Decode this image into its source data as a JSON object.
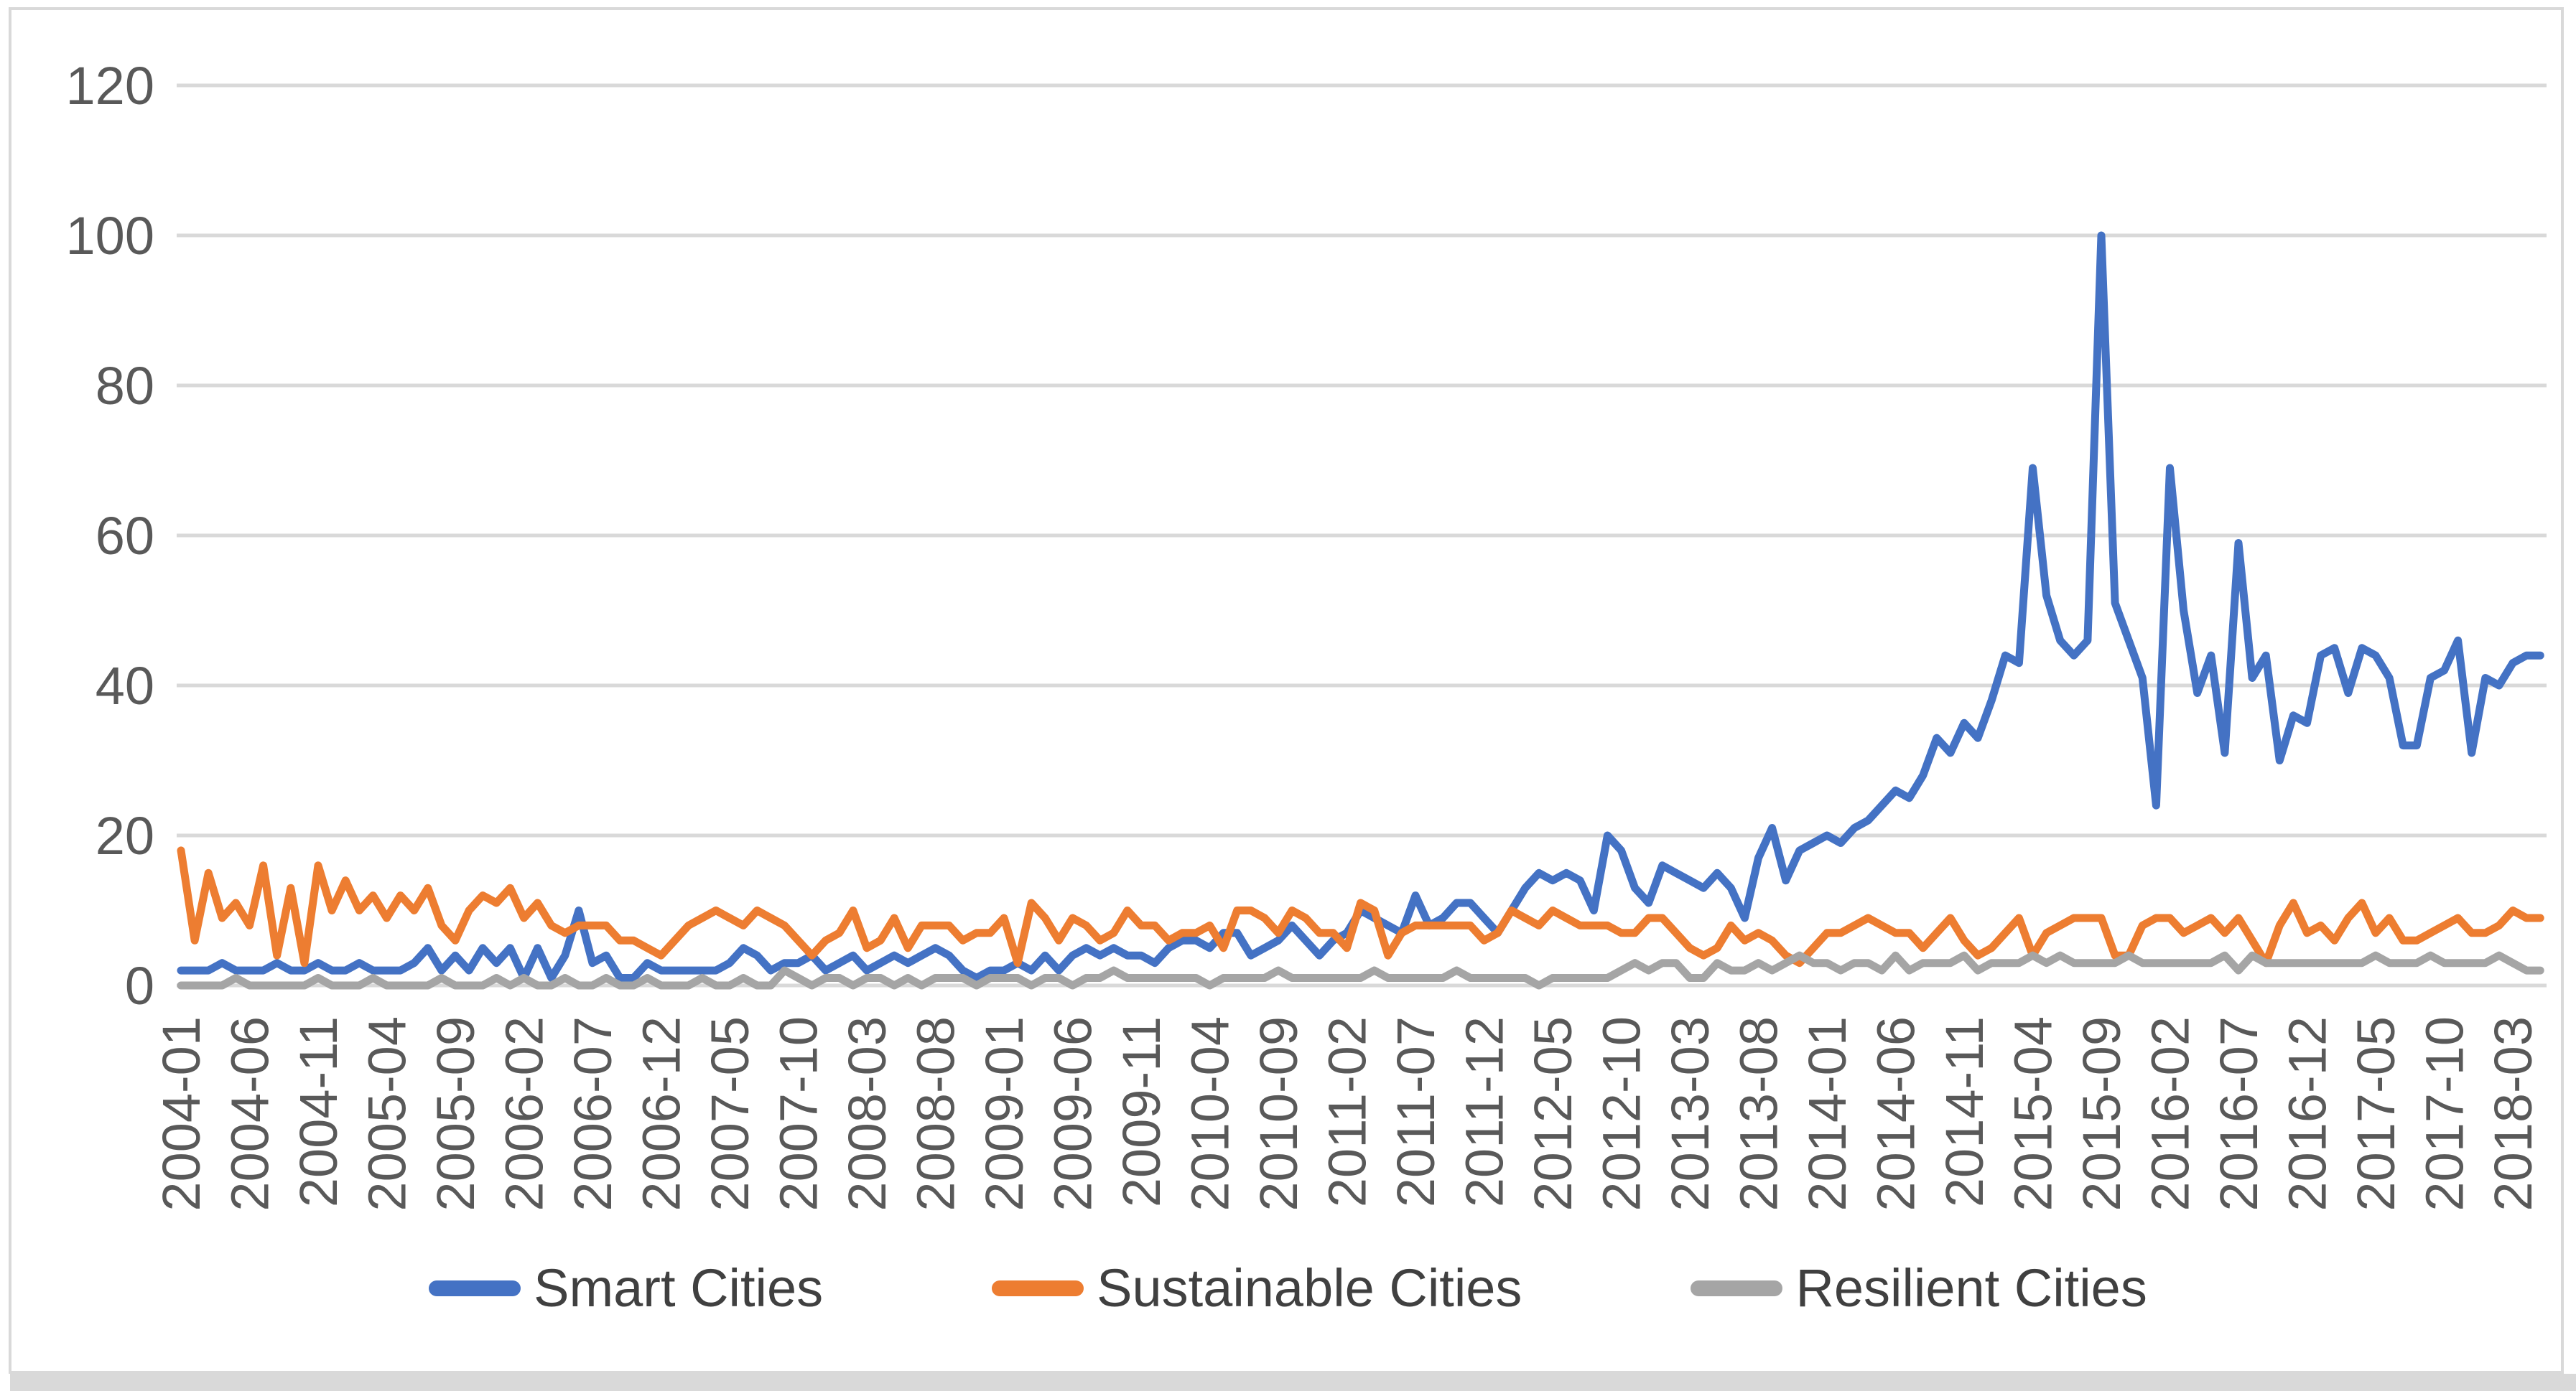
{
  "chart_data": {
    "type": "line",
    "title": "",
    "xlabel": "",
    "ylabel": "",
    "ylim": [
      0,
      120
    ],
    "grid": "horizontal",
    "legend_position": "bottom-center",
    "y_ticks": [
      0,
      20,
      40,
      60,
      80,
      100,
      120
    ],
    "x_start_month": "2004-01",
    "x_end_month": "2018-05",
    "x_tick_step_months": 5,
    "x_tick_labels": [
      "2004-01",
      "2004-06",
      "2004-11",
      "2005-04",
      "2005-09",
      "2006-02",
      "2006-07",
      "2006-12",
      "2007-05",
      "2007-10",
      "2008-03",
      "2008-08",
      "2009-01",
      "2009-06",
      "2009-11",
      "2010-04",
      "2010-09",
      "2011-02",
      "2011-07",
      "2011-12",
      "2012-05",
      "2012-10",
      "2013-03",
      "2013-08",
      "2014-01",
      "2014-06",
      "2014-11",
      "2015-04",
      "2015-09",
      "2016-02",
      "2016-07",
      "2016-12",
      "2017-05",
      "2017-10",
      "2018-03"
    ],
    "series": [
      {
        "name": "Smart Cities",
        "color": "#4472C4",
        "values": [
          2,
          2,
          2,
          3,
          2,
          2,
          2,
          3,
          2,
          2,
          3,
          2,
          2,
          3,
          2,
          2,
          2,
          3,
          5,
          2,
          4,
          2,
          5,
          3,
          5,
          1,
          5,
          1,
          4,
          10,
          3,
          4,
          1,
          1,
          3,
          2,
          2,
          2,
          2,
          2,
          3,
          5,
          4,
          2,
          3,
          3,
          4,
          2,
          3,
          4,
          2,
          3,
          4,
          3,
          4,
          5,
          4,
          2,
          1,
          2,
          2,
          3,
          2,
          4,
          2,
          4,
          5,
          4,
          5,
          4,
          4,
          3,
          5,
          6,
          6,
          5,
          7,
          7,
          4,
          5,
          6,
          8,
          6,
          4,
          6,
          7,
          10,
          9,
          8,
          7,
          12,
          8,
          9,
          11,
          11,
          9,
          7,
          10,
          13,
          15,
          14,
          15,
          14,
          10,
          20,
          18,
          13,
          11,
          16,
          15,
          14,
          13,
          15,
          13,
          9,
          17,
          21,
          14,
          18,
          19,
          20,
          19,
          21,
          22,
          24,
          26,
          25,
          28,
          33,
          31,
          35,
          33,
          38,
          44,
          43,
          69,
          52,
          46,
          44,
          46,
          100,
          51,
          46,
          41,
          24,
          69,
          50,
          39,
          44,
          31,
          59,
          41,
          44,
          30,
          36,
          35,
          44,
          45,
          39,
          45,
          44,
          41,
          32,
          32,
          41,
          42,
          46,
          31,
          41,
          40,
          43,
          44,
          44
        ]
      },
      {
        "name": "Sustainable Cities",
        "color": "#ED7D31",
        "values": [
          18,
          6,
          15,
          9,
          11,
          8,
          16,
          4,
          13,
          3,
          16,
          10,
          14,
          10,
          12,
          9,
          12,
          10,
          13,
          8,
          6,
          10,
          12,
          11,
          13,
          9,
          11,
          8,
          7,
          8,
          8,
          8,
          6,
          6,
          5,
          4,
          6,
          8,
          9,
          10,
          9,
          8,
          10,
          9,
          8,
          6,
          4,
          6,
          7,
          10,
          5,
          6,
          9,
          5,
          8,
          8,
          8,
          6,
          7,
          7,
          9,
          3,
          11,
          9,
          6,
          9,
          8,
          6,
          7,
          10,
          8,
          8,
          6,
          7,
          7,
          8,
          5,
          10,
          10,
          9,
          7,
          10,
          9,
          7,
          7,
          5,
          11,
          10,
          4,
          7,
          8,
          8,
          8,
          8,
          8,
          6,
          7,
          10,
          9,
          8,
          10,
          9,
          8,
          8,
          8,
          7,
          7,
          9,
          9,
          7,
          5,
          4,
          5,
          8,
          6,
          7,
          6,
          4,
          3,
          5,
          7,
          7,
          8,
          9,
          8,
          7,
          7,
          5,
          7,
          9,
          6,
          4,
          5,
          7,
          9,
          4,
          7,
          8,
          9,
          9,
          9,
          4,
          4,
          8,
          9,
          9,
          7,
          8,
          9,
          7,
          9,
          6,
          3,
          8,
          11,
          7,
          8,
          6,
          9,
          11,
          7,
          9,
          6,
          6,
          7,
          8,
          9,
          7,
          7,
          8,
          10,
          9,
          9
        ]
      },
      {
        "name": "Resilient Cities",
        "color": "#A5A5A5",
        "values": [
          0,
          0,
          0,
          0,
          1,
          0,
          0,
          0,
          0,
          0,
          1,
          0,
          0,
          0,
          1,
          0,
          0,
          0,
          0,
          1,
          0,
          0,
          0,
          1,
          0,
          1,
          0,
          0,
          1,
          0,
          0,
          1,
          0,
          0,
          1,
          0,
          0,
          0,
          1,
          0,
          0,
          1,
          0,
          0,
          2,
          1,
          0,
          1,
          1,
          0,
          1,
          1,
          0,
          1,
          0,
          1,
          1,
          1,
          0,
          1,
          1,
          1,
          0,
          1,
          1,
          0,
          1,
          1,
          2,
          1,
          1,
          1,
          1,
          1,
          1,
          0,
          1,
          1,
          1,
          1,
          2,
          1,
          1,
          1,
          1,
          1,
          1,
          2,
          1,
          1,
          1,
          1,
          1,
          2,
          1,
          1,
          1,
          1,
          1,
          0,
          1,
          1,
          1,
          1,
          1,
          2,
          3,
          2,
          3,
          3,
          1,
          1,
          3,
          2,
          2,
          3,
          2,
          3,
          4,
          3,
          3,
          2,
          3,
          3,
          2,
          4,
          2,
          3,
          3,
          3,
          4,
          2,
          3,
          3,
          3,
          4,
          3,
          4,
          3,
          3,
          3,
          3,
          4,
          3,
          3,
          3,
          3,
          3,
          3,
          4,
          2,
          4,
          3,
          3,
          3,
          3,
          3,
          3,
          3,
          3,
          4,
          3,
          3,
          3,
          4,
          3,
          3,
          3,
          3,
          4,
          3,
          2,
          2
        ]
      }
    ]
  },
  "legend": {
    "items": [
      {
        "label": "Smart Cities",
        "color": "#4472C4"
      },
      {
        "label": "Sustainable Cities",
        "color": "#ED7D31"
      },
      {
        "label": "Resilient Cities",
        "color": "#A5A5A5"
      }
    ]
  },
  "style": {
    "gridline_color": "#D9D9D9",
    "axis_label_color": "#595959",
    "legend_text_color": "#404040",
    "frame_color": "#D9D9D9",
    "background": "#FFFFFF"
  }
}
